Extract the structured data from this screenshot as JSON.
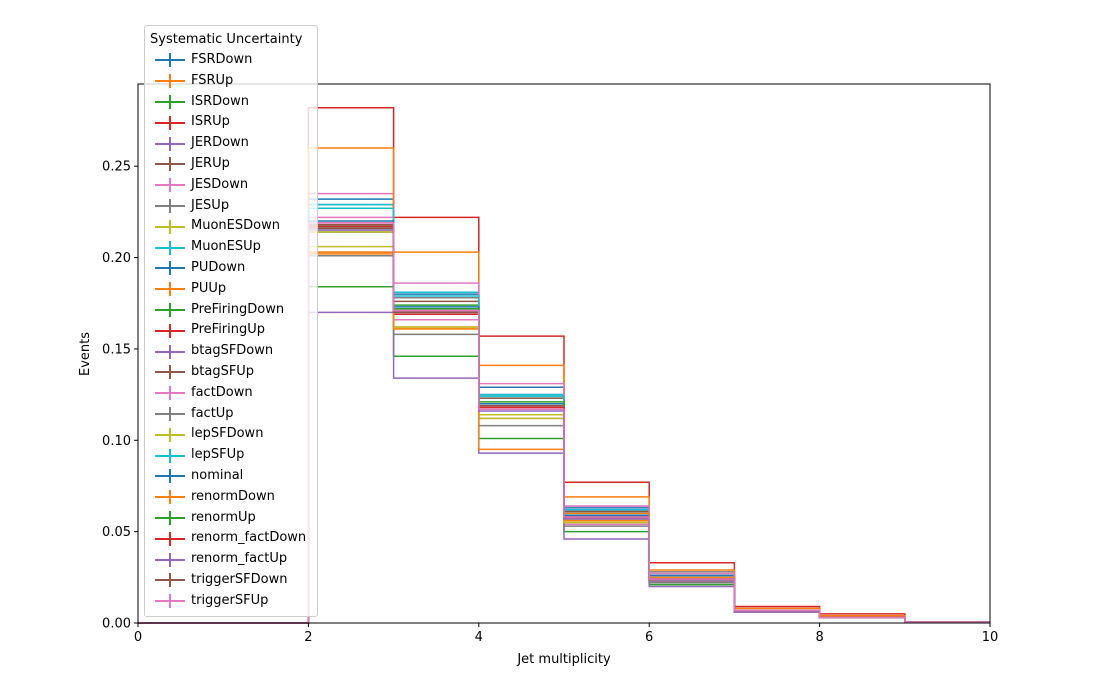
{
  "chart_data": {
    "type": "step",
    "xlabel": "Jet multiplicity",
    "ylabel": "Events",
    "xlim": [
      0,
      10
    ],
    "ylim": [
      0,
      0.295
    ],
    "x_ticks": [
      "0",
      "2",
      "4",
      "6",
      "8",
      "10"
    ],
    "y_ticks": [
      "0.00",
      "0.05",
      "0.10",
      "0.15",
      "0.20",
      "0.25"
    ],
    "legend_title": "Systematic Uncertainty",
    "legend_position": "top-left",
    "bin_edges": [
      0,
      1,
      2,
      3,
      4,
      5,
      6,
      7,
      8,
      9,
      10
    ],
    "series": [
      {
        "name": "FSRDown",
        "color": "#1f77b4",
        "values": [
          0,
          0,
          0.229,
          0.172,
          0.125,
          0.061,
          0.024,
          0.007,
          0.003,
          0.0005
        ]
      },
      {
        "name": "FSRUp",
        "color": "#ff7f0e",
        "values": [
          0,
          0,
          0.202,
          0.162,
          0.114,
          0.056,
          0.022,
          0.006,
          0.003,
          0.0005
        ]
      },
      {
        "name": "ISRDown",
        "color": "#2ca02c",
        "values": [
          0,
          0,
          0.184,
          0.146,
          0.101,
          0.05,
          0.021,
          0.006,
          0.003,
          0.0005
        ]
      },
      {
        "name": "ISRUp",
        "color": "#d62728",
        "values": [
          0,
          0,
          0.282,
          0.222,
          0.157,
          0.077,
          0.033,
          0.009,
          0.005,
          0.0005
        ]
      },
      {
        "name": "JERDown",
        "color": "#9467bd",
        "values": [
          0,
          0,
          0.216,
          0.172,
          0.12,
          0.058,
          0.024,
          0.007,
          0.003,
          0.0005
        ]
      },
      {
        "name": "JERUp",
        "color": "#8c564b",
        "values": [
          0,
          0,
          0.218,
          0.171,
          0.119,
          0.059,
          0.025,
          0.007,
          0.003,
          0.0005
        ]
      },
      {
        "name": "JESDown",
        "color": "#e377c2",
        "values": [
          0,
          0,
          0.235,
          0.166,
          0.112,
          0.054,
          0.022,
          0.006,
          0.003,
          0.0005
        ]
      },
      {
        "name": "JESUp",
        "color": "#7f7f7f",
        "values": [
          0,
          0,
          0.201,
          0.178,
          0.125,
          0.064,
          0.028,
          0.008,
          0.004,
          0.0005
        ]
      },
      {
        "name": "MuonESDown",
        "color": "#bcbd22",
        "values": [
          0,
          0,
          0.206,
          0.162,
          0.112,
          0.055,
          0.023,
          0.006,
          0.003,
          0.0005
        ]
      },
      {
        "name": "MuonESUp",
        "color": "#17becf",
        "values": [
          0,
          0,
          0.229,
          0.181,
          0.125,
          0.062,
          0.026,
          0.007,
          0.003,
          0.0005
        ]
      },
      {
        "name": "PUDown",
        "color": "#1f77b4",
        "values": [
          0,
          0,
          0.232,
          0.18,
          0.129,
          0.063,
          0.026,
          0.007,
          0.003,
          0.0005
        ]
      },
      {
        "name": "PUUp",
        "color": "#ff7f0e",
        "values": [
          0,
          0,
          0.26,
          0.203,
          0.141,
          0.069,
          0.029,
          0.008,
          0.004,
          0.0005
        ]
      },
      {
        "name": "PreFiringDown",
        "color": "#2ca02c",
        "values": [
          0,
          0,
          0.216,
          0.174,
          0.12,
          0.057,
          0.023,
          0.006,
          0.003,
          0.0005
        ]
      },
      {
        "name": "PreFiringUp",
        "color": "#d62728",
        "values": [
          0,
          0,
          0.219,
          0.169,
          0.118,
          0.057,
          0.023,
          0.006,
          0.003,
          0.0005
        ]
      },
      {
        "name": "btagSFDown",
        "color": "#9467bd",
        "values": [
          0,
          0,
          0.17,
          0.134,
          0.093,
          0.046,
          0.02,
          0.006,
          0.003,
          0.0005
        ]
      },
      {
        "name": "btagSFUp",
        "color": "#8c564b",
        "values": [
          0,
          0,
          0.214,
          0.176,
          0.123,
          0.061,
          0.025,
          0.007,
          0.003,
          0.0005
        ]
      },
      {
        "name": "factDown",
        "color": "#e377c2",
        "values": [
          0,
          0,
          0.222,
          0.186,
          0.131,
          0.064,
          0.027,
          0.007,
          0.003,
          0.0005
        ]
      },
      {
        "name": "factUp",
        "color": "#7f7f7f",
        "values": [
          0,
          0,
          0.203,
          0.158,
          0.108,
          0.053,
          0.022,
          0.006,
          0.003,
          0.0005
        ]
      },
      {
        "name": "lepSFDown",
        "color": "#bcbd22",
        "values": [
          0,
          0,
          0.214,
          0.161,
          0.114,
          0.055,
          0.023,
          0.006,
          0.003,
          0.0005
        ]
      },
      {
        "name": "lepSFUp",
        "color": "#17becf",
        "values": [
          0,
          0,
          0.227,
          0.179,
          0.124,
          0.06,
          0.025,
          0.007,
          0.003,
          0.0005
        ]
      },
      {
        "name": "nominal",
        "color": "#1f77b4",
        "values": [
          0,
          0,
          0.22,
          0.173,
          0.12,
          0.059,
          0.024,
          0.007,
          0.003,
          0.0005
        ]
      },
      {
        "name": "renormDown",
        "color": "#ff7f0e",
        "values": [
          0,
          0,
          0.203,
          0.161,
          0.095,
          0.06,
          0.025,
          0.007,
          0.003,
          0.0005
        ]
      },
      {
        "name": "renormUp",
        "color": "#2ca02c",
        "values": [
          0,
          0,
          0.217,
          0.172,
          0.121,
          0.058,
          0.024,
          0.007,
          0.003,
          0.0005
        ]
      },
      {
        "name": "renorm_factDown",
        "color": "#d62728",
        "values": [
          0,
          0,
          0.217,
          0.171,
          0.118,
          0.058,
          0.024,
          0.007,
          0.003,
          0.0005
        ]
      },
      {
        "name": "renorm_factUp",
        "color": "#9467bd",
        "values": [
          0,
          0,
          0.215,
          0.17,
          0.116,
          0.057,
          0.023,
          0.006,
          0.003,
          0.0005
        ]
      },
      {
        "name": "triggerSFDown",
        "color": "#8c564b",
        "values": [
          0,
          0,
          0.216,
          0.17,
          0.117,
          0.058,
          0.024,
          0.007,
          0.003,
          0.0005
        ]
      },
      {
        "name": "triggerSFUp",
        "color": "#e377c2",
        "values": [
          0,
          0,
          0.219,
          0.171,
          0.117,
          0.058,
          0.024,
          0.007,
          0.003,
          0.0005
        ]
      }
    ]
  }
}
